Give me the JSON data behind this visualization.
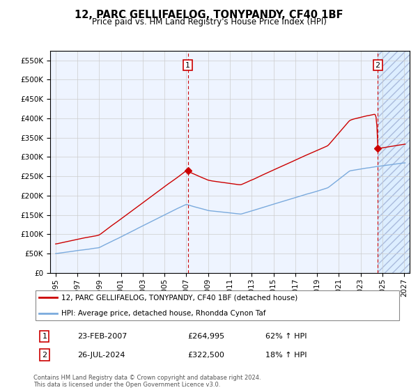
{
  "title": "12, PARC GELLIFAELOG, TONYPANDY, CF40 1BF",
  "subtitle": "Price paid vs. HM Land Registry's House Price Index (HPI)",
  "ylabel_ticks": [
    "£0",
    "£50K",
    "£100K",
    "£150K",
    "£200K",
    "£250K",
    "£300K",
    "£350K",
    "£400K",
    "£450K",
    "£500K",
    "£550K"
  ],
  "ytick_values": [
    0,
    50000,
    100000,
    150000,
    200000,
    250000,
    300000,
    350000,
    400000,
    450000,
    500000,
    550000
  ],
  "xlim": [
    1994.5,
    2027.5
  ],
  "ylim": [
    0,
    575000
  ],
  "point1_x": 2007.14,
  "point1_y": 264995,
  "point1_label": "1",
  "point1_date": "23-FEB-2007",
  "point1_price": "£264,995",
  "point1_hpi": "62% ↑ HPI",
  "point2_x": 2024.57,
  "point2_y": 322500,
  "point2_label": "2",
  "point2_date": "26-JUL-2024",
  "point2_price": "£322,500",
  "point2_hpi": "18% ↑ HPI",
  "legend_line1": "12, PARC GELLIFAELOG, TONYPANDY, CF40 1BF (detached house)",
  "legend_line2": "HPI: Average price, detached house, Rhondda Cynon Taf",
  "footer1": "Contains HM Land Registry data © Crown copyright and database right 2024.",
  "footer2": "This data is licensed under the Open Government Licence v3.0.",
  "red_color": "#cc0000",
  "blue_color": "#7aaadd",
  "bg_color": "#ddeeff",
  "future_x_start": 2024.57
}
